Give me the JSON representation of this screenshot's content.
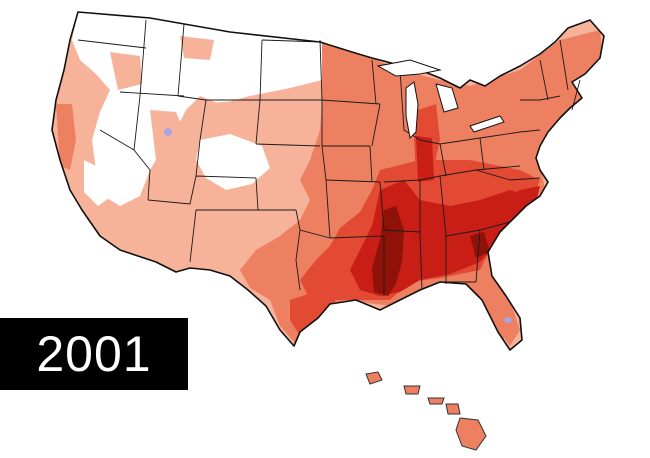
{
  "year_label": "2001",
  "colors": {
    "background": "#ffffff",
    "level_0": "#ffffff",
    "level_1": "#f7b29a",
    "level_2": "#ee8062",
    "level_3": "#e24a33",
    "level_4": "#c81e16",
    "level_5": "#8e1208",
    "water_dot": "#a8a6e0",
    "label_bg": "#000000",
    "label_text": "#ffffff"
  }
}
